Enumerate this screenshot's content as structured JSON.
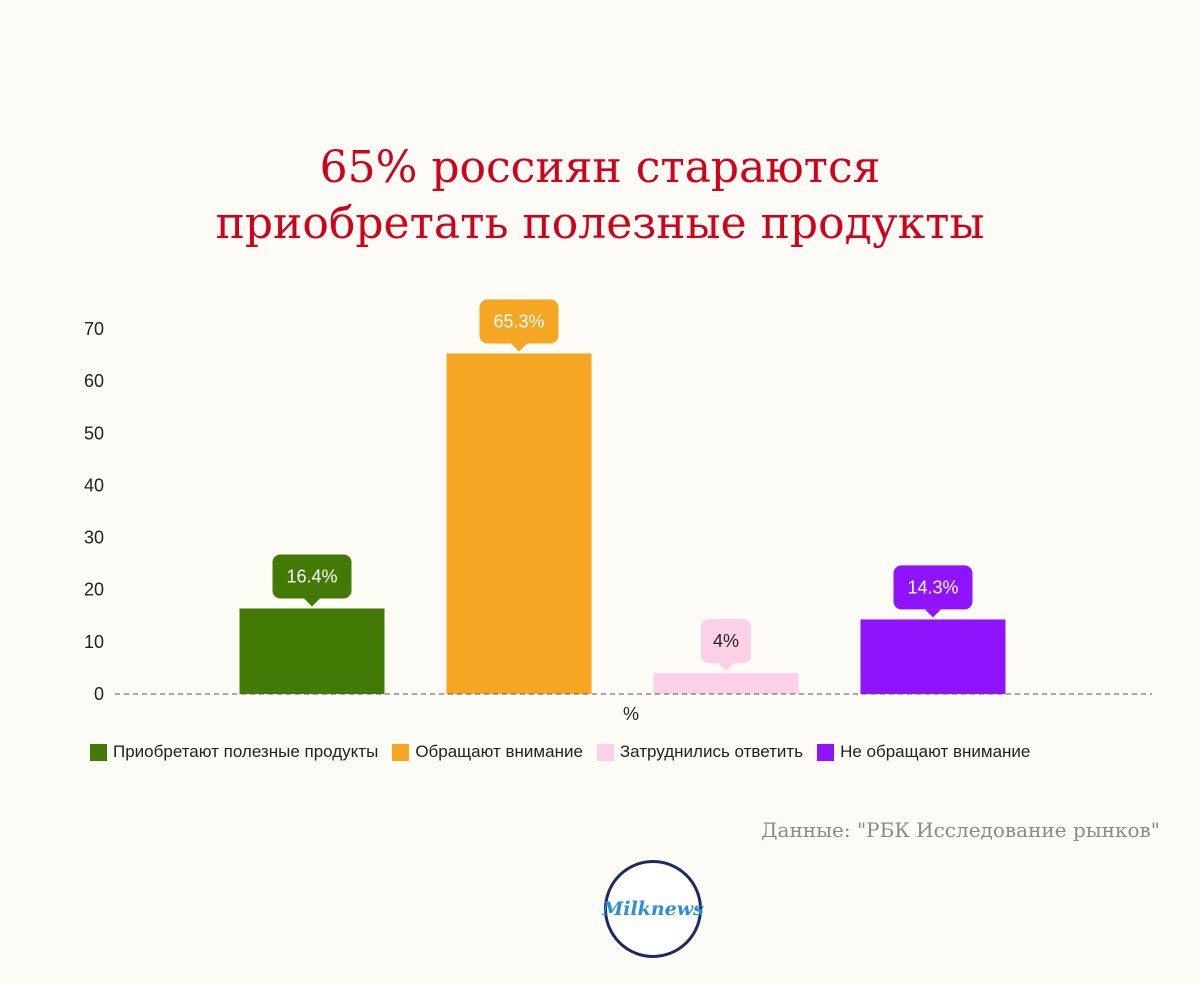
{
  "title_lines": [
    "65% россиян стараются",
    "приобретать полезные продукты"
  ],
  "source": "Данные: \"РБК Исследование рынков\"",
  "logo_text": "Milknews",
  "chart_data": {
    "type": "bar",
    "categories": [
      "Приобретают полезные продукты",
      "Обращают внимание",
      "Затруднились ответить",
      "Не обращают внимание"
    ],
    "values": [
      16.4,
      65.3,
      4,
      14.3
    ],
    "data_labels": [
      "16.4%",
      "65.3%",
      "4%",
      "14.3%"
    ],
    "colors": [
      "#437a05",
      "#f5a623",
      "#fcd0e6",
      "#9013fe"
    ],
    "label_text_colors": [
      "#ffffff",
      "#ffffff",
      "#222222",
      "#ffffff"
    ],
    "xlabel": "%",
    "ylabel": "",
    "ylim": [
      0,
      70
    ],
    "yticks": [
      0,
      10,
      20,
      30,
      40,
      50,
      60,
      70
    ],
    "legend": [
      "Приобретают полезные продукты",
      "Обращают внимание",
      "Затруднились ответить",
      "Не обращают внимание"
    ],
    "legend_position": "bottom-left",
    "grid": false
  }
}
